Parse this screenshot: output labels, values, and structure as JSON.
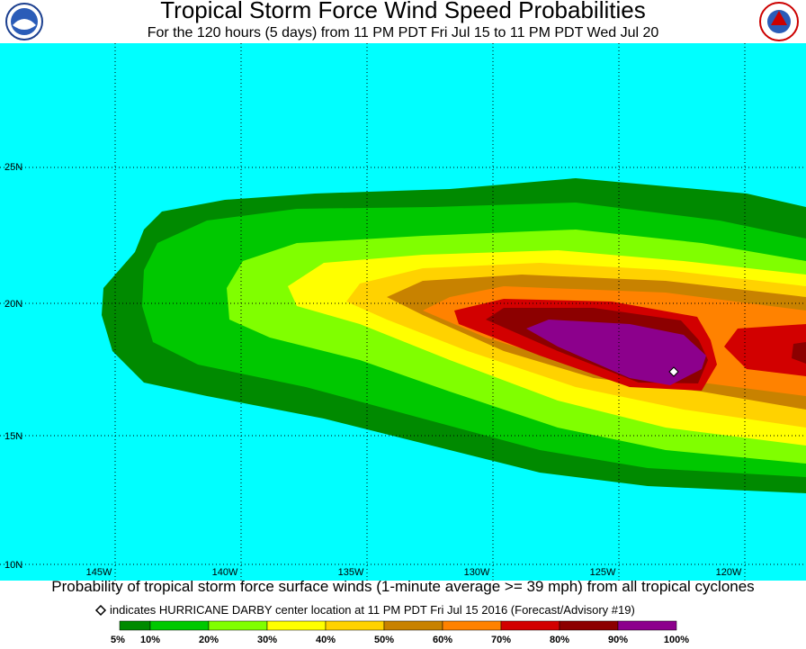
{
  "header": {
    "title": "Tropical Storm Force Wind Speed Probabilities",
    "subtitle": "For the 120 hours (5 days) from 11 PM PDT Fri Jul 15 to 11 PM PDT Wed Jul 20"
  },
  "map": {
    "lat_labels": [
      "25N",
      "20N",
      "15N",
      "10N"
    ],
    "lon_labels": [
      "145W",
      "140W",
      "135W",
      "130W",
      "125W",
      "120W"
    ]
  },
  "caption": "Probability of tropical storm force surface winds (1-minute average >= 39 mph) from all tropical cyclones",
  "note": "indicates HURRICANE DARBY center location at 11 PM PDT Fri Jul 15 2016 (Forecast/Advisory #19)",
  "legend": {
    "colors": [
      "#008a00",
      "#00c800",
      "#80ff00",
      "#ffff00",
      "#ffd200",
      "#c88200",
      "#ff8200",
      "#d20000",
      "#8c0000",
      "#8c008c"
    ],
    "labels": [
      "5%",
      "10%",
      "20%",
      "30%",
      "40%",
      "50%",
      "60%",
      "70%",
      "80%",
      "90%",
      "100%"
    ]
  }
}
